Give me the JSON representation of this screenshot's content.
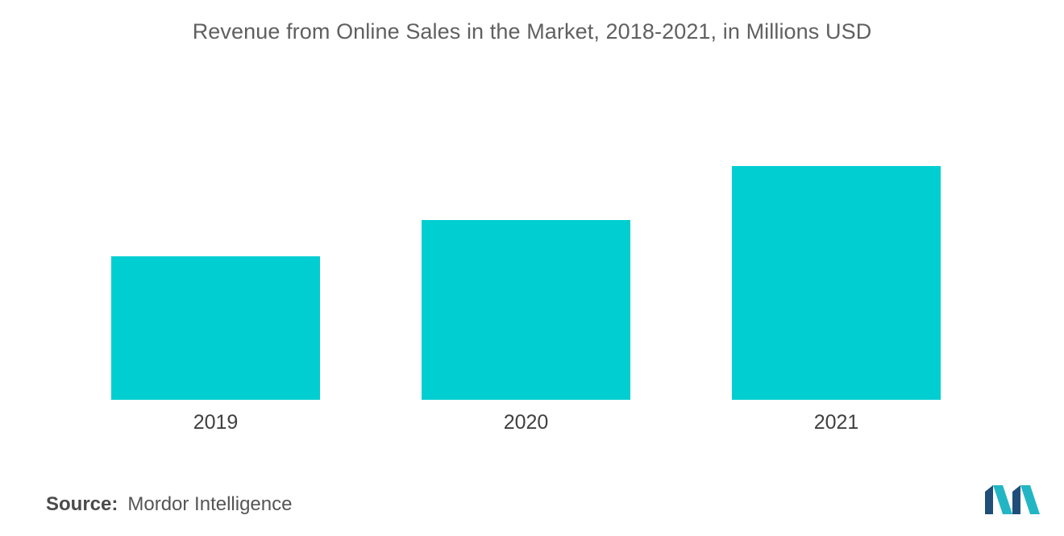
{
  "chart_data": {
    "type": "bar",
    "title": "Revenue from Online Sales in the Market, 2018-2021, in Millions USD",
    "xlabel": "",
    "ylabel": "",
    "categories": [
      "2019",
      "2020",
      "2021"
    ],
    "values": [
      178,
      223,
      290
    ],
    "ylim": [
      0,
      300
    ],
    "grid": false,
    "legend": "none",
    "bar_color": "#00CED1"
  },
  "source": {
    "label": "Source:",
    "value": "Mordor Intelligence"
  },
  "colors": {
    "text": "#606060",
    "axis_text": "#404040",
    "logo_dark": "#1F4E79",
    "logo_light": "#22B6C4"
  },
  "logo_icon": "mordor-intelligence-logo"
}
